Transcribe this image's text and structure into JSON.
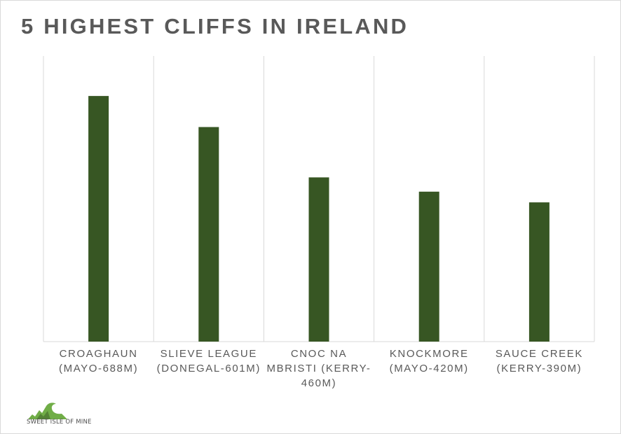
{
  "chart_data": {
    "type": "bar",
    "title": "5 HIGHEST CLIFFS IN IRELAND",
    "categories": [
      "CROAGHAUN (MAYO-688M)",
      "SLIEVE LEAGUE (DONEGAL-601M)",
      "CNOC NA MBRISTI (KERRY-460M)",
      "KNOCKMORE (MAYO-420M)",
      "SAUCE CREEK (KERRY-390M)"
    ],
    "category_lines": [
      [
        "CROAGHAUN",
        "(MAYO-688M)"
      ],
      [
        "SLIEVE LEAGUE",
        "(DONEGAL-601M)"
      ],
      [
        "CNOC NA",
        "MBRISTI (KERRY-",
        "460M)"
      ],
      [
        "KNOCKMORE",
        "(MAYO-420M)"
      ],
      [
        "SAUCE CREEK",
        "(KERRY-390M)"
      ]
    ],
    "values": [
      688,
      601,
      460,
      420,
      390
    ],
    "ylim": [
      0,
      800
    ],
    "xlabel": "",
    "ylabel": "",
    "grid": "vertical category separators",
    "legend": "none",
    "bar_color": "#375623"
  },
  "watermark": {
    "text": "SWEET ISLE OF MINE",
    "color": "#70ad47"
  }
}
